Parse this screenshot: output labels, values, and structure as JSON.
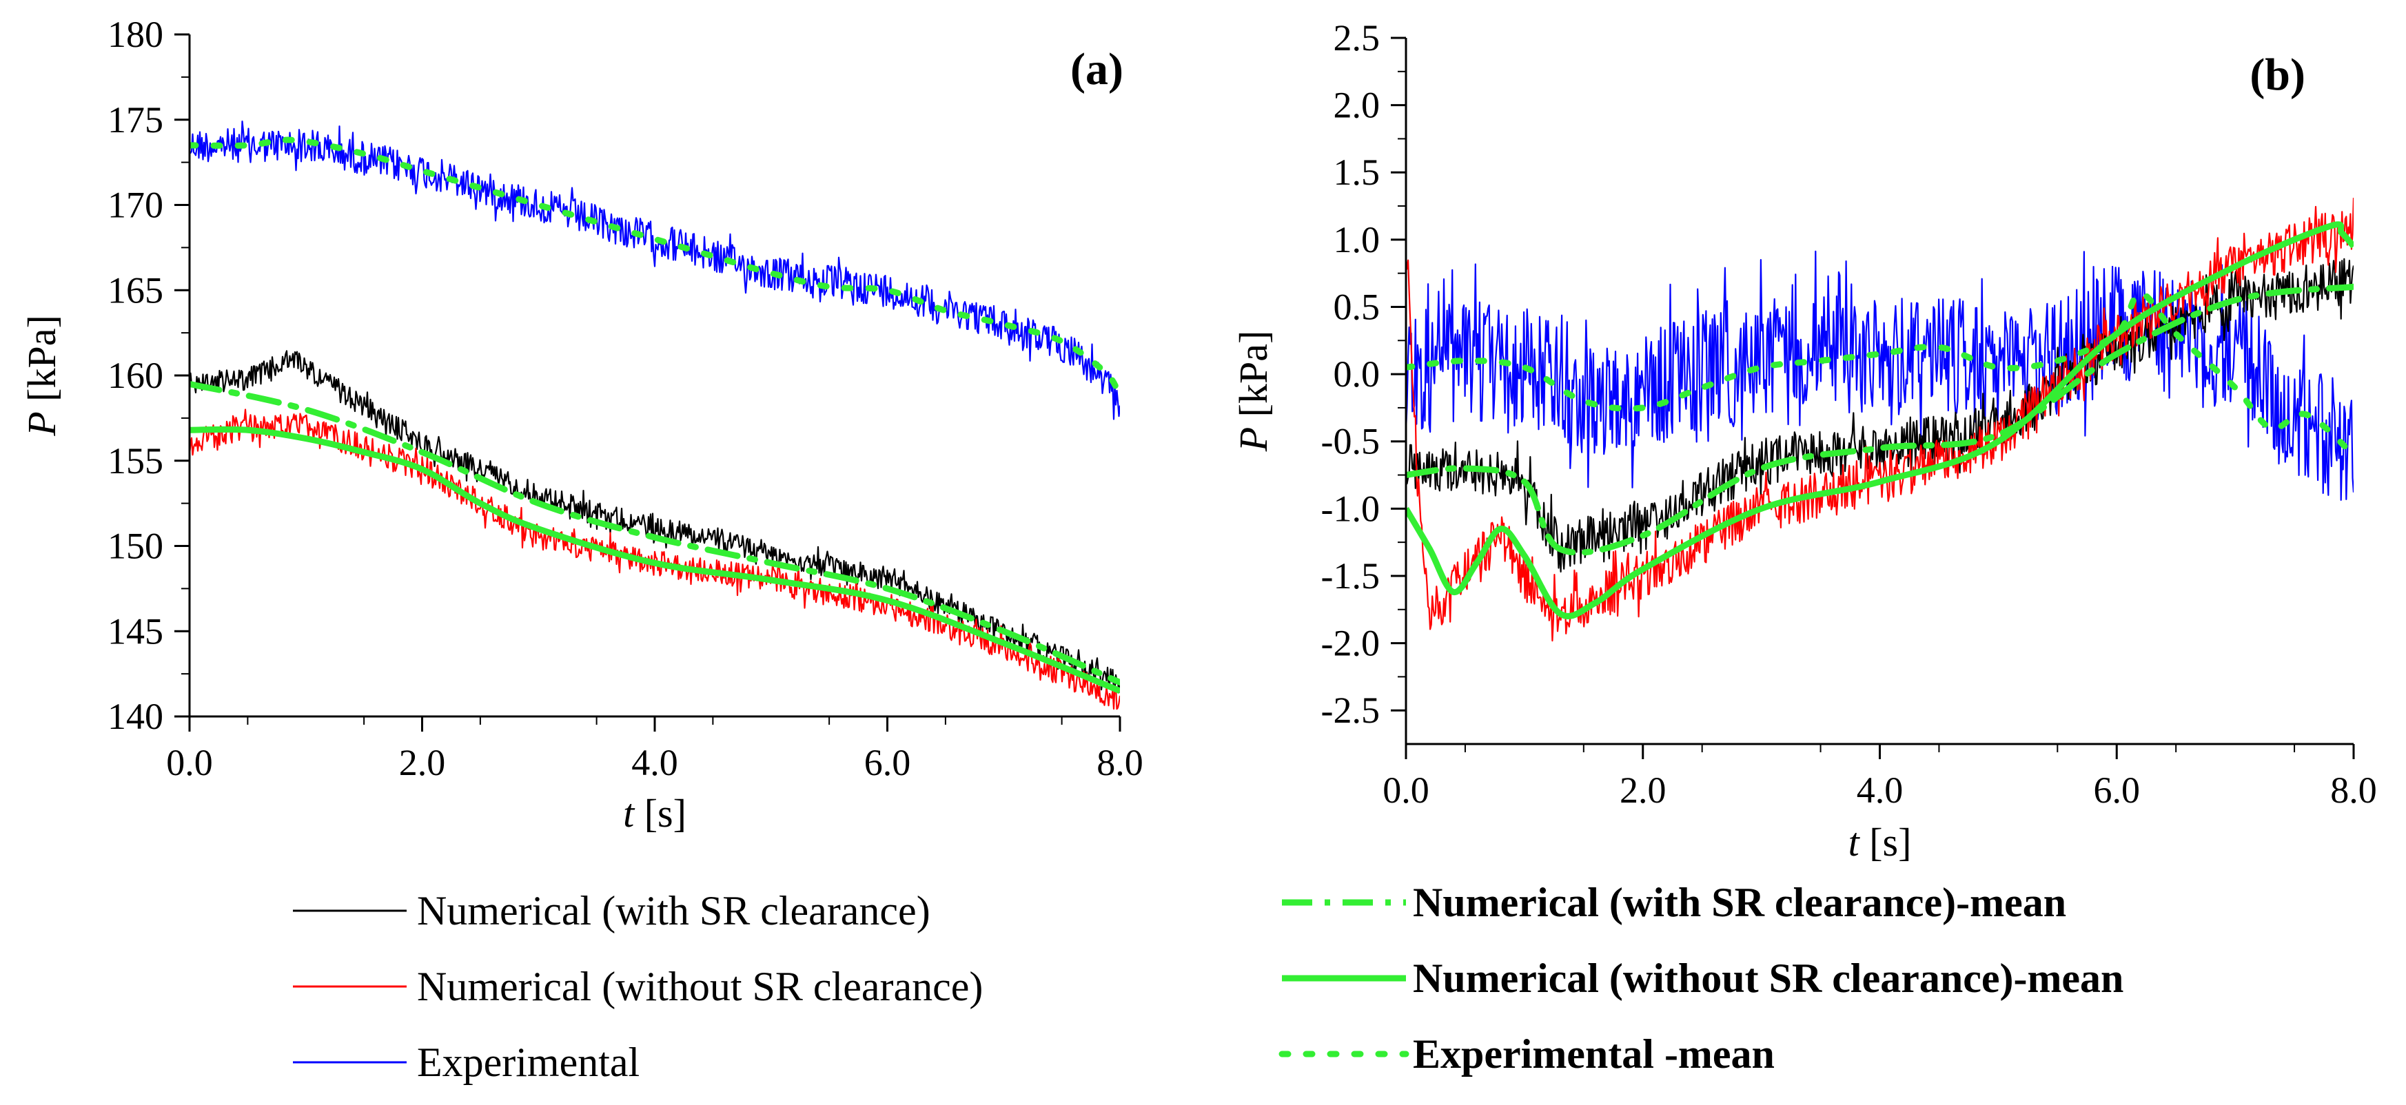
{
  "chart_data": [
    {
      "type": "line",
      "panel": "(a)",
      "xlabel_italic": "t",
      "xlabel_unit": "[s]",
      "ylabel_italic": "P",
      "ylabel_unit": "[kPa]",
      "xlim": [
        0,
        8
      ],
      "ylim": [
        140,
        180
      ],
      "xticks": [
        0,
        2,
        4,
        6,
        8
      ],
      "xtick_labels": [
        "0.0",
        "2.0",
        "4.0",
        "6.0",
        "8.0"
      ],
      "yticks": [
        140,
        145,
        150,
        155,
        160,
        165,
        170,
        175,
        180
      ],
      "ytick_labels": [
        "140",
        "145",
        "150",
        "155",
        "160",
        "165",
        "170",
        "175",
        "180"
      ],
      "series": [
        {
          "name": "Experimental",
          "color": "#0000ff",
          "style": "noisy",
          "noise": 2.0,
          "x": [
            0,
            0.5,
            1.0,
            2.0,
            3.0,
            4.0,
            5.0,
            6.0,
            7.0,
            7.6,
            8.0
          ],
          "y": [
            173.5,
            173.5,
            173.5,
            172.0,
            170.0,
            168.0,
            166.0,
            165.0,
            163.0,
            161.5,
            158.5
          ]
        },
        {
          "name": "Numerical (with SR clearance)",
          "color": "#000000",
          "style": "noisy",
          "noise": 1.3,
          "x": [
            0,
            0.5,
            0.9,
            1.2,
            2.0,
            3.0,
            4.0,
            4.5,
            5.0,
            6.0,
            7.0,
            8.0
          ],
          "y": [
            159.5,
            159.8,
            161.0,
            159.5,
            156.0,
            153.0,
            151.0,
            150.5,
            149.5,
            148.0,
            145.0,
            142.0
          ]
        },
        {
          "name": "Numerical (without SR clearance)",
          "color": "#ff0000",
          "style": "noisy",
          "noise": 1.5,
          "x": [
            0,
            0.5,
            1.0,
            2.0,
            2.5,
            3.0,
            4.0,
            5.0,
            6.0,
            7.0,
            8.0
          ],
          "y": [
            156.0,
            157.0,
            157.0,
            154.5,
            152.5,
            150.5,
            149.0,
            148.0,
            146.5,
            144.0,
            141.0
          ]
        },
        {
          "name": "Experimental -mean",
          "color": "#33ee33",
          "style": "dot",
          "x": [
            0,
            0.5,
            0.9,
            1.5,
            2.0,
            2.5,
            3.0,
            3.5,
            4.0,
            4.5,
            5.0,
            5.5,
            6.0,
            6.5,
            7.0,
            7.5,
            7.9,
            8.0
          ],
          "y": [
            173.5,
            173.5,
            173.8,
            173.0,
            172.0,
            171.0,
            170.0,
            169.0,
            168.0,
            167.0,
            166.0,
            165.2,
            165.0,
            163.8,
            163.0,
            162.0,
            160.0,
            158.5
          ]
        },
        {
          "name": "Numerical (with SR clearance)-mean",
          "color": "#33ee33",
          "style": "dashdot",
          "x": [
            0,
            1.0,
            2.0,
            3.0,
            4.0,
            5.0,
            6.0,
            7.0,
            8.0
          ],
          "y": [
            159.5,
            158.0,
            155.5,
            152.5,
            150.5,
            149.0,
            147.5,
            145.0,
            142.0
          ]
        },
        {
          "name": "Numerical (without SR clearance)-mean",
          "color": "#33ee33",
          "style": "solid",
          "x": [
            0,
            0.5,
            1.0,
            1.5,
            2.0,
            2.5,
            3.0,
            4.0,
            5.0,
            6.0,
            7.0,
            8.0
          ],
          "y": [
            156.8,
            156.8,
            156.3,
            155.5,
            154.5,
            152.5,
            151.0,
            149.0,
            148.0,
            146.8,
            144.3,
            141.5
          ]
        }
      ]
    },
    {
      "type": "line",
      "panel": "(b)",
      "xlabel_italic": "t",
      "xlabel_unit": "[s]",
      "ylabel_italic": "P",
      "ylabel_unit": "[kPa]",
      "xlim": [
        0,
        8
      ],
      "ylim": [
        -2.75,
        2.5
      ],
      "xticks": [
        0,
        2,
        4,
        6,
        8
      ],
      "xtick_labels": [
        "0.0",
        "2.0",
        "4.0",
        "6.0",
        "8.0"
      ],
      "yticks": [
        -2.5,
        -2.0,
        -1.5,
        -1.0,
        -0.5,
        0.0,
        0.5,
        1.0,
        1.5,
        2.0,
        2.5
      ],
      "ytick_labels": [
        "-2.5",
        "-2.0",
        "-1.5",
        "-1.0",
        "-0.5",
        "0.0",
        "0.5",
        "1.0",
        "1.5",
        "2.0",
        "2.5"
      ],
      "series": [
        {
          "name": "Experimental",
          "color": "#0000ff",
          "style": "noisy",
          "noise": 0.9,
          "x": [
            0,
            0.5,
            1.0,
            1.5,
            2.0,
            2.5,
            3.0,
            3.5,
            4.0,
            4.5,
            5.0,
            5.5,
            6.0,
            6.5,
            7.0,
            7.5,
            8.0
          ],
          "y": [
            0.0,
            0.1,
            0.05,
            -0.2,
            -0.1,
            0.0,
            0.1,
            0.2,
            0.1,
            0.2,
            0.0,
            0.1,
            0.4,
            0.3,
            0.2,
            -0.3,
            -0.6
          ]
        },
        {
          "name": "Numerical (with SR clearance)",
          "color": "#000000",
          "style": "noisy",
          "noise": 0.35,
          "x": [
            0,
            0.5,
            1.0,
            1.3,
            2.0,
            3.0,
            4.0,
            5.0,
            6.0,
            7.0,
            8.0
          ],
          "y": [
            -0.7,
            -0.7,
            -0.8,
            -1.3,
            -1.1,
            -0.65,
            -0.55,
            -0.4,
            0.2,
            0.55,
            0.7
          ]
        },
        {
          "name": "Numerical (without SR clearance)",
          "color": "#ff0000",
          "style": "noisy",
          "noise": 0.35,
          "x": [
            0,
            0.1,
            0.2,
            0.4,
            0.8,
            1.0,
            1.3,
            2.0,
            3.0,
            4.0,
            5.0,
            6.0,
            7.0,
            8.0
          ],
          "y": [
            1.0,
            -0.8,
            -1.8,
            -1.6,
            -1.2,
            -1.5,
            -1.8,
            -1.5,
            -1.0,
            -0.8,
            -0.5,
            0.3,
            0.8,
            1.1
          ]
        },
        {
          "name": "Experimental -mean",
          "color": "#33ee33",
          "style": "dot",
          "x": [
            0,
            0.5,
            1.0,
            1.5,
            2.0,
            2.5,
            3.0,
            3.5,
            4.0,
            4.5,
            5.0,
            5.5,
            6.0,
            6.2,
            6.5,
            7.0,
            7.3,
            7.6,
            8.0
          ],
          "y": [
            0.05,
            0.1,
            0.05,
            -0.2,
            -0.25,
            -0.1,
            0.05,
            0.1,
            0.15,
            0.2,
            0.05,
            0.1,
            0.3,
            0.6,
            0.3,
            -0.1,
            -0.4,
            -0.3,
            -0.6
          ]
        },
        {
          "name": "Numerical (with SR clearance)-mean",
          "color": "#33ee33",
          "style": "dashdot",
          "x": [
            0,
            0.5,
            1.0,
            1.3,
            2.0,
            3.0,
            4.0,
            5.0,
            6.0,
            7.0,
            8.0
          ],
          "y": [
            -0.75,
            -0.7,
            -0.8,
            -1.3,
            -1.2,
            -0.7,
            -0.55,
            -0.45,
            0.15,
            0.55,
            0.65
          ]
        },
        {
          "name": "Numerical (without SR clearance)-mean",
          "color": "#33ee33",
          "style": "solid",
          "x": [
            0,
            0.2,
            0.4,
            0.6,
            0.8,
            1.0,
            1.3,
            1.6,
            2.0,
            3.0,
            4.0,
            5.0,
            6.0,
            7.0,
            7.8,
            7.9,
            8.0
          ],
          "y": [
            -1.0,
            -1.3,
            -1.62,
            -1.4,
            -1.15,
            -1.35,
            -1.78,
            -1.7,
            -1.45,
            -1.0,
            -0.8,
            -0.5,
            0.3,
            0.8,
            1.1,
            1.05,
            0.95
          ]
        }
      ]
    }
  ],
  "legend_left": [
    {
      "label": "Numerical (with SR clearance)",
      "color": "#000000",
      "style": "thin"
    },
    {
      "label": "Numerical (without SR clearance)",
      "color": "#ff0000",
      "style": "thin"
    },
    {
      "label": "Experimental",
      "color": "#0000ff",
      "style": "thin"
    }
  ],
  "legend_right": [
    {
      "label": "Numerical (with SR clearance)-mean",
      "color": "#33ee33",
      "style": "dashdot"
    },
    {
      "label": "Numerical (without SR clearance)-mean",
      "color": "#33ee33",
      "style": "solid"
    },
    {
      "label": "Experimental -mean",
      "color": "#33ee33",
      "style": "dot"
    }
  ]
}
